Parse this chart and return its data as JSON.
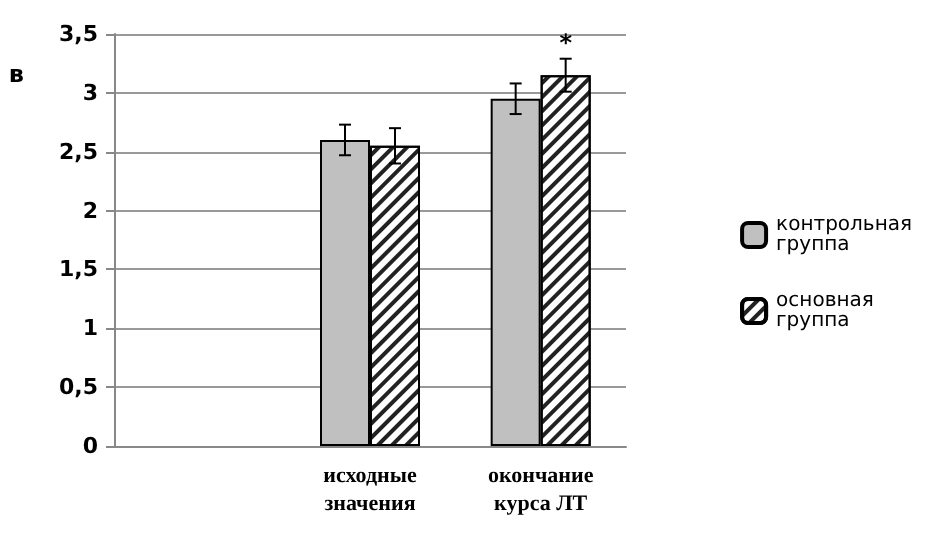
{
  "chart_data": {
    "type": "bar",
    "ylabel": "в",
    "categories": [
      null,
      "исходные значения",
      "окончание курса ЛТ"
    ],
    "series": [
      {
        "name": "контрольная группа",
        "color": "#c0c0c0",
        "values": [
          null,
          2.6,
          2.95
        ],
        "errors": [
          null,
          0.13,
          0.13
        ]
      },
      {
        "name": "основная группа",
        "color": "#ffffff",
        "values": [
          null,
          2.55,
          3.15
        ],
        "errors": [
          null,
          0.15,
          0.14
        ]
      }
    ],
    "annotations": [
      "*"
    ],
    "ylim": [
      0,
      3.5
    ],
    "yticks": [
      0,
      {
        "value": 0.5,
        "label": "0,5"
      },
      1,
      {
        "value": 1.5,
        "label": "1,5"
      },
      2,
      {
        "value": 2.5,
        "label": "2,5"
      },
      3,
      {
        "value": 3.5,
        "label": "3,5"
      }
    ],
    "grid": "y",
    "legend": "right"
  }
}
